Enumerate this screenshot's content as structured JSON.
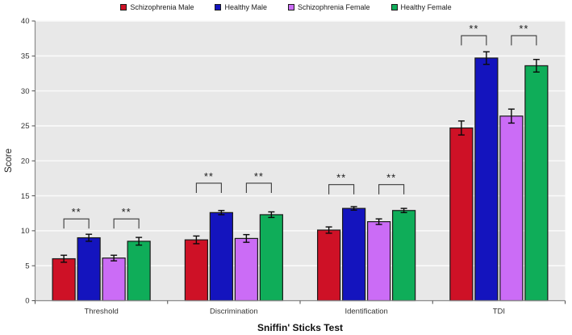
{
  "chart_data": {
    "type": "bar",
    "title": "",
    "xlabel": "Sniffin' Sticks Test",
    "ylabel": "Score",
    "categories": [
      "Threshold",
      "Discrimination",
      "Identification",
      "TDI"
    ],
    "series": [
      {
        "name": "Schizophrenia Male",
        "color": "#CE1126",
        "values": [
          6.0,
          8.7,
          10.1,
          24.7
        ],
        "errors": [
          0.5,
          0.55,
          0.45,
          1.0
        ]
      },
      {
        "name": "Healthy Male",
        "color": "#1414BE",
        "values": [
          9.0,
          12.6,
          13.2,
          34.7
        ],
        "errors": [
          0.5,
          0.3,
          0.25,
          0.9
        ]
      },
      {
        "name": "Schizophrenia Female",
        "color": "#CB6CF6",
        "values": [
          6.1,
          8.9,
          11.3,
          26.4
        ],
        "errors": [
          0.4,
          0.55,
          0.4,
          1.0
        ]
      },
      {
        "name": "Healthy Female",
        "color": "#0FAD59",
        "values": [
          8.5,
          12.3,
          12.9,
          33.6
        ],
        "errors": [
          0.55,
          0.4,
          0.3,
          0.9
        ]
      }
    ],
    "ylim": [
      0,
      40
    ],
    "ytick_step": 5,
    "grid": true,
    "legend_position": "top-center",
    "plot_bg": "#E8E8E8",
    "grid_color": "#FAFAFA",
    "axis_color": "#8C8C8C",
    "tick_color": "#4D4D4D",
    "bar_border_color": "#1A1A1A",
    "error_bar_color": "#0A0A0A",
    "bracket_color": "#3A3A3A",
    "significance": [
      {
        "category": "Threshold",
        "pairs": [
          [
            0,
            1
          ],
          [
            2,
            3
          ]
        ],
        "label": "**",
        "y": 11.7
      },
      {
        "category": "Discrimination",
        "pairs": [
          [
            0,
            1
          ],
          [
            2,
            3
          ]
        ],
        "label": "**",
        "y": 16.8
      },
      {
        "category": "Identification",
        "pairs": [
          [
            0,
            1
          ],
          [
            2,
            3
          ]
        ],
        "label": "**",
        "y": 16.6
      },
      {
        "category": "TDI",
        "pairs": [
          [
            0,
            1
          ],
          [
            2,
            3
          ]
        ],
        "label": "**",
        "y": 37.9
      }
    ]
  }
}
